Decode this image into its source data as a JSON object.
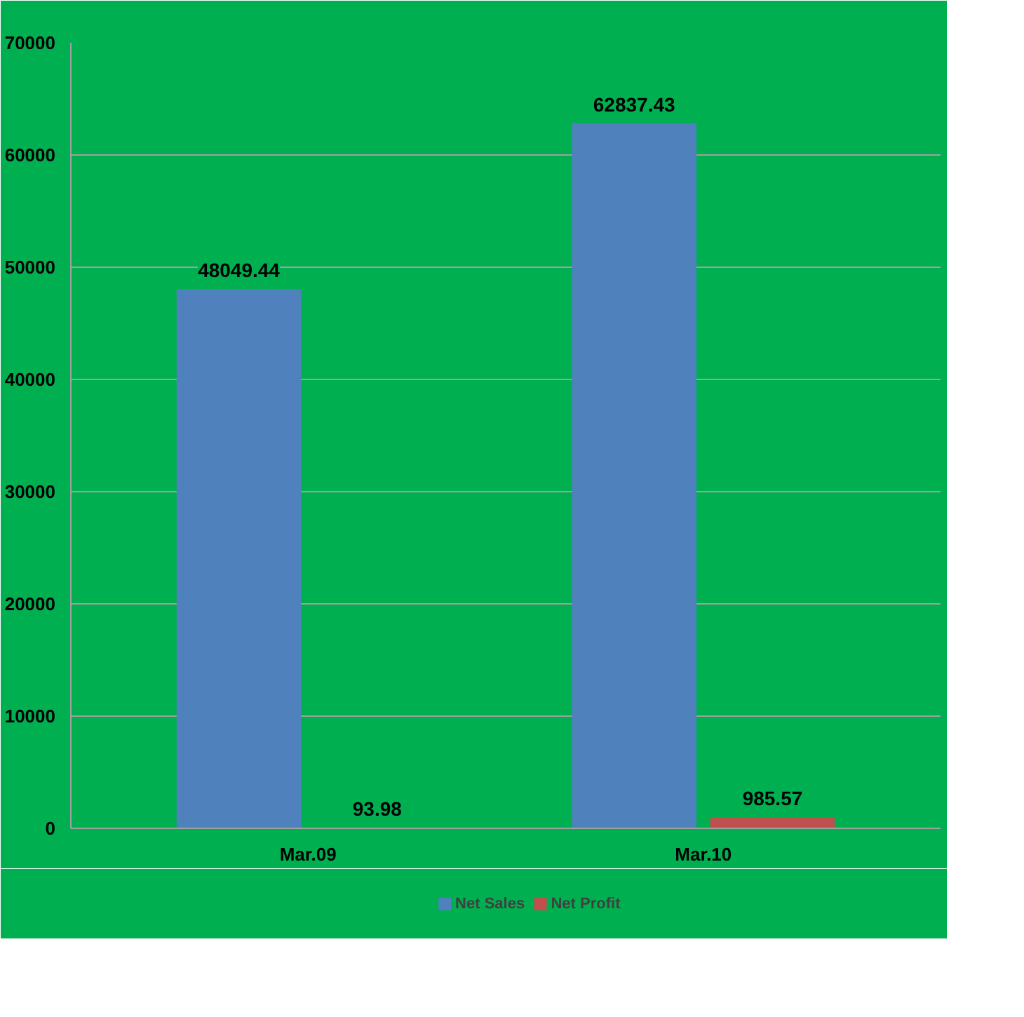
{
  "chart_data": {
    "type": "bar",
    "categories": [
      "Mar.09",
      "Mar.10"
    ],
    "series": [
      {
        "name": "Net Sales",
        "color": "#4f81bd",
        "values": [
          48049.44,
          62837.43
        ]
      },
      {
        "name": "Net Profit",
        "color": "#c0504d",
        "values": [
          93.98,
          985.57
        ]
      }
    ],
    "ylim": [
      0,
      70000
    ],
    "yticks": [
      0,
      10000,
      20000,
      30000,
      40000,
      50000,
      60000,
      70000
    ],
    "grid": "y",
    "legend": "bottom",
    "data_labels": true
  }
}
